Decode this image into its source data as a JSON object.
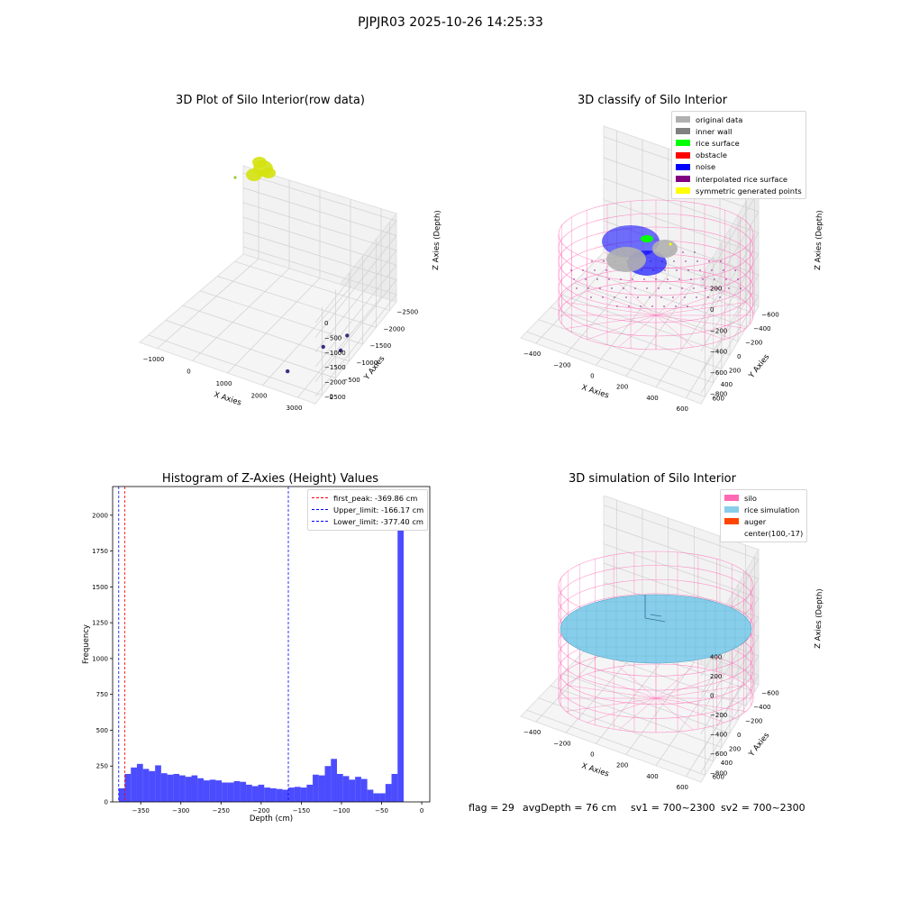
{
  "figure_title": "PJPJR03 2025-10-26 14:25:33",
  "status": {
    "flag": "flag = 29",
    "avg_depth": "avgDepth = 76 cm",
    "sv1": "sv1 = 700~2300",
    "sv2": "sv2 = 700~2300"
  },
  "colors": {
    "histogram_bar": "#0000ff",
    "first_peak_line": "#ff0000",
    "upper_limit_line": "#0000ff",
    "lower_limit_line": "#0000ff",
    "raw_points": "#d4e20f",
    "original_data": "#b0b0b0",
    "inner_wall": "#808080",
    "rice_surface": "#00ff00",
    "obstacle": "#ff0000",
    "noise": "#0000ff",
    "interpolated_rice_surface": "#800080",
    "symmetric_generated_points": "#ffff00",
    "silo": "#ff69b4",
    "rice_simulation": "#87ceeb",
    "auger": "#ff4500"
  },
  "chart_data": [
    {
      "type": "scatter",
      "projection": "3d",
      "title": "3D Plot of Silo Interior(row data)",
      "xlabel": "X Axies",
      "ylabel": "Y Axies",
      "zlabel": "Z Axies (Depth)",
      "x_ticks": [
        "−1000",
        "0",
        "1000",
        "2000",
        "3000"
      ],
      "y_ticks": [
        "0",
        "−500",
        "−1000",
        "−1500",
        "−2000",
        "−2500"
      ],
      "z_ticks": [
        "0",
        "−500",
        "−1000",
        "−1500",
        "−2000",
        "−2500"
      ],
      "grid": true,
      "outliers": [
        {
          "x": 3050,
          "y": -1350,
          "z": -2650
        },
        {
          "x": 2950,
          "y": -1000,
          "z": -2600
        },
        {
          "x": 2600,
          "y": -1400,
          "z": -2650
        },
        {
          "x": 2350,
          "y": -2300,
          "z": -2550
        }
      ]
    },
    {
      "type": "scatter",
      "projection": "3d",
      "title": "3D classify of Silo Interior",
      "xlabel": "X Axies",
      "ylabel": "Y Axies",
      "zlabel": "Z Axies (Depth)",
      "x_ticks": [
        "−400",
        "−200",
        "0",
        "200",
        "400",
        "600"
      ],
      "y_ticks": [
        "600",
        "400",
        "200",
        "0",
        "−200",
        "−400",
        "−600"
      ],
      "z_ticks": [
        "200",
        "0",
        "−200",
        "−400",
        "−600",
        "−800"
      ],
      "grid": true,
      "legend_position": "top-right",
      "legend": [
        "original data",
        "inner wall",
        "rice surface",
        "obstacle",
        "noise",
        "interpolated rice surface",
        "symmetric generated points"
      ]
    },
    {
      "type": "bar",
      "title": "Histogram of Z-Axies (Height) Values",
      "xlabel": "Depth (cm)",
      "ylabel": "Frequency",
      "xlim": [
        -385,
        10
      ],
      "ylim": [
        0,
        2200
      ],
      "x_ticks": [
        "−350",
        "−300",
        "−250",
        "−200",
        "−150",
        "−100",
        "−50",
        "0"
      ],
      "y_ticks": [
        "0",
        "250",
        "500",
        "750",
        "1000",
        "1250",
        "1500",
        "1750",
        "2000"
      ],
      "bin_start": -377.4,
      "bin_width": 7.55,
      "values": [
        95,
        195,
        240,
        265,
        230,
        215,
        255,
        200,
        190,
        195,
        185,
        175,
        185,
        165,
        150,
        155,
        150,
        135,
        135,
        145,
        140,
        120,
        110,
        120,
        100,
        95,
        90,
        85,
        100,
        105,
        100,
        120,
        190,
        185,
        250,
        300,
        195,
        180,
        155,
        175,
        160,
        85,
        60,
        60,
        125,
        195,
        2100
      ],
      "legend_position": "top-right",
      "vlines": [
        {
          "label": "first_peak: -369.86 cm",
          "x": -369.86
        },
        {
          "label": "Upper_limit: -166.17 cm",
          "x": -166.17
        },
        {
          "label": "Lower_limit: -377.40 cm",
          "x": -377.4
        }
      ]
    },
    {
      "type": "surface",
      "projection": "3d",
      "title": "3D simulation of Silo Interior",
      "xlabel": "X Axies",
      "ylabel": "Y Axies",
      "zlabel": "Z Axies (Depth)",
      "x_ticks": [
        "−400",
        "−200",
        "0",
        "200",
        "400",
        "600"
      ],
      "y_ticks": [
        "600",
        "400",
        "200",
        "0",
        "−200",
        "−400",
        "−600"
      ],
      "z_ticks": [
        "400",
        "200",
        "0",
        "−200",
        "−400",
        "−600",
        "−800"
      ],
      "grid": true,
      "legend_position": "top-right",
      "legend": [
        "silo",
        "rice simulation",
        "auger",
        "center(100,-17)"
      ]
    }
  ]
}
